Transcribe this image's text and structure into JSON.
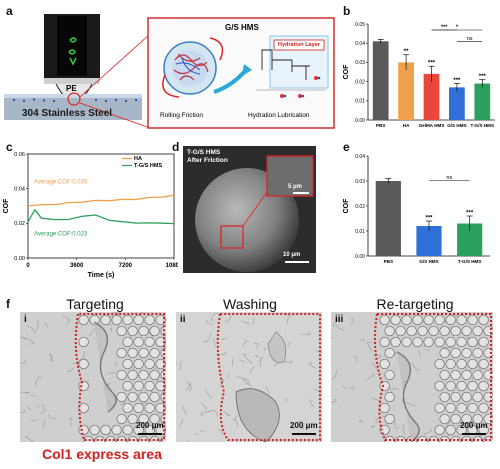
{
  "panels": {
    "a": {
      "letter": "a",
      "ge_label": "G/S HMS",
      "pe_label": "PE",
      "steel_label": "304 Stainless Steel",
      "rolling_label": "Rolling Friction",
      "hydration_layer_label": "Hydration Layer",
      "hydration_lub_label": "Hydration Lubrication"
    },
    "b": {
      "letter": "b"
    },
    "c": {
      "letter": "c"
    },
    "d": {
      "letter": "d",
      "sample_label": "T-G/S HMS",
      "after_label": "After Friction",
      "inset_scale": "5 μm",
      "main_scale": "10 μm"
    },
    "e": {
      "letter": "e"
    },
    "f": {
      "letter": "f",
      "titles": [
        "Targeting",
        "Washing",
        "Re-targeting"
      ],
      "romans": [
        "i",
        "ii",
        "iii"
      ],
      "scale": "200 μm",
      "area_label": "Col1 express area"
    }
  },
  "chart_data": [
    {
      "id": "b",
      "type": "bar",
      "ylabel": "COF",
      "ylim": [
        0.0,
        0.05
      ],
      "yticks": [
        "0.00",
        "0.01",
        "0.02",
        "0.03",
        "0.04",
        "0.05"
      ],
      "categories": [
        "PBS",
        "HA",
        "GelMA HMS",
        "G/S HMS",
        "T-G/S HMS"
      ],
      "values": [
        0.041,
        0.03,
        0.024,
        0.017,
        0.019
      ],
      "errors": [
        0.001,
        0.004,
        0.004,
        0.002,
        0.002
      ],
      "colors": [
        "#5a5a5a",
        "#f0a04b",
        "#e8473b",
        "#2e6fd8",
        "#2ba15d"
      ],
      "bar_stars": [
        "",
        "**",
        "***",
        "***",
        "***"
      ],
      "comparisons": [
        {
          "from": 2,
          "to": 3,
          "label": "***"
        },
        {
          "from": 2,
          "to": 4,
          "label": "*"
        },
        {
          "from": 3,
          "to": 4,
          "label": "ns"
        }
      ]
    },
    {
      "id": "c",
      "type": "line",
      "xlabel": "Time (s)",
      "ylabel": "COF",
      "xlim": [
        0,
        10800
      ],
      "ylim": [
        0.0,
        0.06
      ],
      "xticks": [
        "0",
        "3600",
        "7200",
        "10800"
      ],
      "yticks": [
        "0.00",
        "0.02",
        "0.04",
        "0.06"
      ],
      "legend": [
        "HA",
        "T-G/S HMS"
      ],
      "series": [
        {
          "name": "HA",
          "color": "#f0a04b",
          "x": [
            0,
            1000,
            2000,
            3000,
            4000,
            5000,
            6000,
            7000,
            8000,
            9000,
            10000,
            10800
          ],
          "y": [
            0.03,
            0.031,
            0.031,
            0.032,
            0.032,
            0.033,
            0.033,
            0.034,
            0.034,
            0.035,
            0.035,
            0.036
          ]
        },
        {
          "name": "T-G/S HMS",
          "color": "#2ba15d",
          "x": [
            0,
            500,
            1000,
            2000,
            3000,
            4000,
            5000,
            6000,
            7000,
            8000,
            9000,
            10000,
            10800
          ],
          "y": [
            0.021,
            0.028,
            0.023,
            0.022,
            0.022,
            0.024,
            0.025,
            0.022,
            0.021,
            0.02,
            0.02,
            0.02,
            0.02
          ]
        }
      ],
      "annotations": [
        {
          "text": "Average COF:0.033",
          "color": "#f0a04b"
        },
        {
          "text": "Average COF:0.023",
          "color": "#2ba15d"
        }
      ]
    },
    {
      "id": "e",
      "type": "bar",
      "ylabel": "COF",
      "ylim": [
        0.0,
        0.04
      ],
      "yticks": [
        "0.00",
        "0.01",
        "0.02",
        "0.03",
        "0.04"
      ],
      "categories": [
        "PBS",
        "G/S HMS",
        "T-G/S HMS"
      ],
      "values": [
        0.03,
        0.012,
        0.013
      ],
      "errors": [
        0.001,
        0.002,
        0.003
      ],
      "colors": [
        "#5a5a5a",
        "#2e6fd8",
        "#2ba15d"
      ],
      "bar_stars": [
        "",
        "***",
        "***"
      ],
      "comparisons": [
        {
          "from": 1,
          "to": 2,
          "label": "ns"
        }
      ]
    }
  ]
}
